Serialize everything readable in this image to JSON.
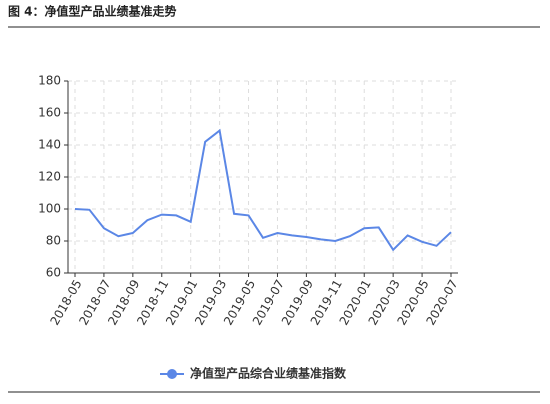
{
  "chart_data": {
    "type": "line",
    "title": "图 4：净值型产品业绩基准走势",
    "categories": [
      "2018-05",
      null,
      "2018-07",
      null,
      "2018-09",
      null,
      "2018-11",
      null,
      "2019-01",
      null,
      "2019-03",
      null,
      "2019-05",
      null,
      "2019-07",
      null,
      "2019-09",
      null,
      "2019-11",
      null,
      "2020-01",
      null,
      "2020-03",
      null,
      "2020-05",
      null,
      "2020-07"
    ],
    "series": [
      {
        "name": "净值型产品综合业绩基准指数",
        "color": "#5b87e6",
        "values": [
          100,
          99.5,
          88,
          83,
          85,
          93,
          96.5,
          96,
          92,
          142,
          149,
          97,
          96,
          82,
          85,
          83.5,
          82.5,
          81,
          80,
          83,
          88,
          88.5,
          74.5,
          83.5,
          79.5,
          77,
          85.5
        ]
      }
    ],
    "ylim": [
      60,
      180
    ],
    "yticks": [
      60,
      80,
      100,
      120,
      140,
      160,
      180
    ],
    "grid": true
  }
}
